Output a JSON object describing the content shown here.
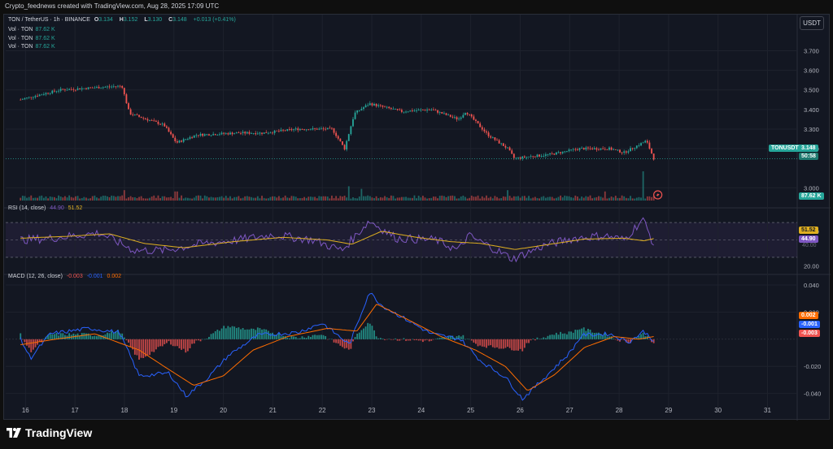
{
  "header": {
    "credit": "Crypto_feednews created with TradingView.com, Aug 28, 2025 17:09 UTC"
  },
  "price_legend": {
    "symbol": "TON / TetherUS · 1h · BINANCE",
    "o_label": "O",
    "o": "3.134",
    "h_label": "H",
    "h": "3.152",
    "l_label": "L",
    "l": "3.130",
    "c_label": "C",
    "c": "3.148",
    "change": "+0.013 (+0.41%)"
  },
  "vol_legend": [
    {
      "name": "Vol · TON",
      "value": "87.62 K"
    },
    {
      "name": "Vol · TON",
      "value": "87.62 K"
    },
    {
      "name": "Vol · TON",
      "value": "87.62 K"
    }
  ],
  "rsi_legend": {
    "name": "RSI (14, close)",
    "rsi": "44.90",
    "ma": "51.52"
  },
  "macd_legend": {
    "name": "MACD (12, 26, close)",
    "hist": "-0.003",
    "macd": "-0.001",
    "signal": "0.002"
  },
  "currency_button": "USDT",
  "price_axis": {
    "labels": [
      "3.700",
      "3.600",
      "3.500",
      "3.400",
      "3.300",
      "3.200",
      "3.000"
    ],
    "values": [
      3.7,
      3.6,
      3.5,
      3.4,
      3.3,
      3.2,
      3.0
    ]
  },
  "rsi_axis": {
    "labels": [
      "60.00",
      "20.00"
    ],
    "values": [
      60,
      20
    ]
  },
  "macd_axis": {
    "labels": [
      "0.040",
      "0.020",
      "-0.020",
      "-0.040"
    ],
    "values": [
      0.04,
      0.02,
      -0.02,
      -0.04
    ]
  },
  "time_axis": [
    "16",
    "17",
    "18",
    "19",
    "20",
    "21",
    "22",
    "23",
    "24",
    "25",
    "26",
    "27",
    "28",
    "29",
    "30",
    "31"
  ],
  "tags": {
    "ticker": "TONUSDT",
    "last_price": "3.148",
    "countdown": "50:58",
    "volume": "87.62 K",
    "rsi_ma": "51.52",
    "rsi": "44.90",
    "rsi_hidden": "40.00",
    "macd_signal": "0.002",
    "macd_line": "-0.001",
    "macd_hist": "-0.003"
  },
  "brand": {
    "name": "TradingView"
  },
  "colors": {
    "up": "#26a69a",
    "down": "#ef5350",
    "rsi": "#7e57c2",
    "rsi_ma": "#e0b020",
    "macd": "#2962ff",
    "signal": "#ff6d00",
    "background": "#131722"
  },
  "chart_data": {
    "type": "candlestick",
    "interval": "1h",
    "x_start_day": 15.9,
    "x_end_day": 28.7,
    "price_anchors": [
      [
        15.9,
        3.45
      ],
      [
        16.2,
        3.47
      ],
      [
        16.7,
        3.5
      ],
      [
        17.3,
        3.51
      ],
      [
        17.95,
        3.52
      ],
      [
        18.1,
        3.38
      ],
      [
        18.8,
        3.32
      ],
      [
        19.05,
        3.23
      ],
      [
        19.45,
        3.27
      ],
      [
        20.3,
        3.28
      ],
      [
        20.8,
        3.28
      ],
      [
        21.5,
        3.3
      ],
      [
        22.2,
        3.3
      ],
      [
        22.45,
        3.2
      ],
      [
        22.65,
        3.38
      ],
      [
        22.95,
        3.43
      ],
      [
        23.6,
        3.39
      ],
      [
        24.2,
        3.4
      ],
      [
        24.75,
        3.35
      ],
      [
        24.9,
        3.39
      ],
      [
        25.35,
        3.27
      ],
      [
        25.75,
        3.2
      ],
      [
        25.88,
        3.15
      ],
      [
        26.2,
        3.16
      ],
      [
        26.6,
        3.17
      ],
      [
        27.2,
        3.2
      ],
      [
        27.8,
        3.2
      ],
      [
        28.1,
        3.18
      ],
      [
        28.4,
        3.22
      ],
      [
        28.55,
        3.24
      ],
      [
        28.7,
        3.15
      ]
    ],
    "volume_spike_days": [
      [
        18.0,
        1.6
      ],
      [
        19.05,
        1.4
      ],
      [
        22.55,
        2.2
      ],
      [
        22.8,
        1.8
      ],
      [
        25.75,
        1.6
      ],
      [
        27.7,
        1.4
      ],
      [
        28.48,
        4.5
      ]
    ],
    "rsi_anchors": [
      [
        15.9,
        50
      ],
      [
        16.5,
        52
      ],
      [
        17.5,
        58
      ],
      [
        18.2,
        38
      ],
      [
        18.8,
        38
      ],
      [
        19.5,
        45
      ],
      [
        20.3,
        50
      ],
      [
        21.0,
        56
      ],
      [
        21.8,
        50
      ],
      [
        22.4,
        38
      ],
      [
        22.95,
        72
      ],
      [
        23.5,
        52
      ],
      [
        24.3,
        50
      ],
      [
        24.75,
        38
      ],
      [
        24.95,
        55
      ],
      [
        25.4,
        42
      ],
      [
        25.85,
        28
      ],
      [
        26.5,
        44
      ],
      [
        27.1,
        52
      ],
      [
        27.7,
        55
      ],
      [
        28.1,
        50
      ],
      [
        28.48,
        74
      ],
      [
        28.7,
        45
      ]
    ],
    "rsi_ma_anchors": [
      [
        15.9,
        52
      ],
      [
        16.8,
        54
      ],
      [
        17.7,
        57
      ],
      [
        18.4,
        46
      ],
      [
        19.2,
        41
      ],
      [
        20.2,
        48
      ],
      [
        21.2,
        53
      ],
      [
        22.1,
        50
      ],
      [
        22.6,
        45
      ],
      [
        23.2,
        60
      ],
      [
        23.9,
        53
      ],
      [
        24.6,
        48
      ],
      [
        25.2,
        46
      ],
      [
        25.9,
        39
      ],
      [
        26.6,
        45
      ],
      [
        27.3,
        51
      ],
      [
        28.1,
        52
      ],
      [
        28.5,
        49
      ],
      [
        28.7,
        51.5
      ]
    ],
    "macd_anchors": [
      [
        15.9,
        0.0
      ],
      [
        16.1,
        -0.014
      ],
      [
        16.5,
        0.004
      ],
      [
        17.3,
        0.008
      ],
      [
        17.9,
        0.005
      ],
      [
        18.3,
        -0.027
      ],
      [
        18.9,
        -0.025
      ],
      [
        19.25,
        -0.042
      ],
      [
        19.7,
        -0.028
      ],
      [
        20.1,
        -0.012
      ],
      [
        20.7,
        0.003
      ],
      [
        21.5,
        0.005
      ],
      [
        22.0,
        0.012
      ],
      [
        22.55,
        -0.004
      ],
      [
        22.95,
        0.035
      ],
      [
        23.2,
        0.025
      ],
      [
        24.2,
        0.004
      ],
      [
        24.8,
        0.0
      ],
      [
        25.2,
        -0.016
      ],
      [
        25.7,
        -0.028
      ],
      [
        26.05,
        -0.044
      ],
      [
        26.5,
        -0.028
      ],
      [
        27.0,
        -0.01
      ],
      [
        27.25,
        0.003
      ],
      [
        27.8,
        0.004
      ],
      [
        28.2,
        -0.002
      ],
      [
        28.5,
        0.006
      ],
      [
        28.7,
        -0.001
      ]
    ],
    "signal_anchors": [
      [
        15.9,
        -0.004
      ],
      [
        16.6,
        0.0
      ],
      [
        17.4,
        0.004
      ],
      [
        18.3,
        -0.008
      ],
      [
        18.8,
        -0.02
      ],
      [
        19.4,
        -0.034
      ],
      [
        20.0,
        -0.027
      ],
      [
        20.6,
        -0.008
      ],
      [
        21.3,
        0.002
      ],
      [
        22.1,
        0.008
      ],
      [
        22.7,
        0.006
      ],
      [
        23.1,
        0.026
      ],
      [
        23.7,
        0.015
      ],
      [
        24.4,
        0.002
      ],
      [
        25.1,
        -0.008
      ],
      [
        25.7,
        -0.02
      ],
      [
        26.15,
        -0.038
      ],
      [
        26.7,
        -0.026
      ],
      [
        27.3,
        -0.006
      ],
      [
        27.9,
        0.002
      ],
      [
        28.4,
        0.0
      ],
      [
        28.7,
        0.002
      ]
    ],
    "ylim_price": [
      2.91,
      3.76
    ],
    "ylim_rsi": [
      15,
      85
    ],
    "ylim_macd": [
      -0.048,
      0.046
    ],
    "xlim_days": [
      15.6,
      31.6
    ],
    "rsi_bands": [
      70,
      50,
      30
    ],
    "last_price_line": 3.148,
    "grid": true
  }
}
